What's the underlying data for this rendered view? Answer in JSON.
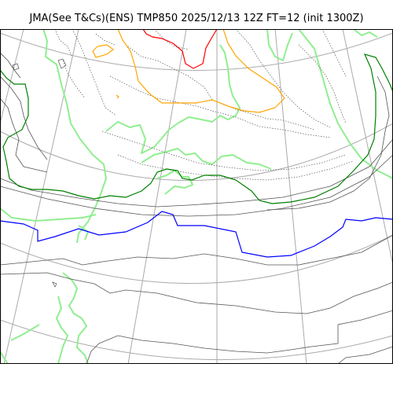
{
  "title": "JMA(See T&Cs)(ENS) TMP850 2025/12/13 12Z FT=12 (init 1300Z)",
  "colors": {
    "background": "#ffffff",
    "graticule": "#aaaaaa",
    "coastline": "#90ee90",
    "thin_isotherm": "#555555",
    "dotted_isotherm": "#555555",
    "isotherm_red": "#ff0000",
    "isotherm_orange": "#ffa500",
    "isotherm_green": "#008000",
    "isotherm_blue": "#0000ff"
  },
  "icons": [
    "map-canvas"
  ]
}
